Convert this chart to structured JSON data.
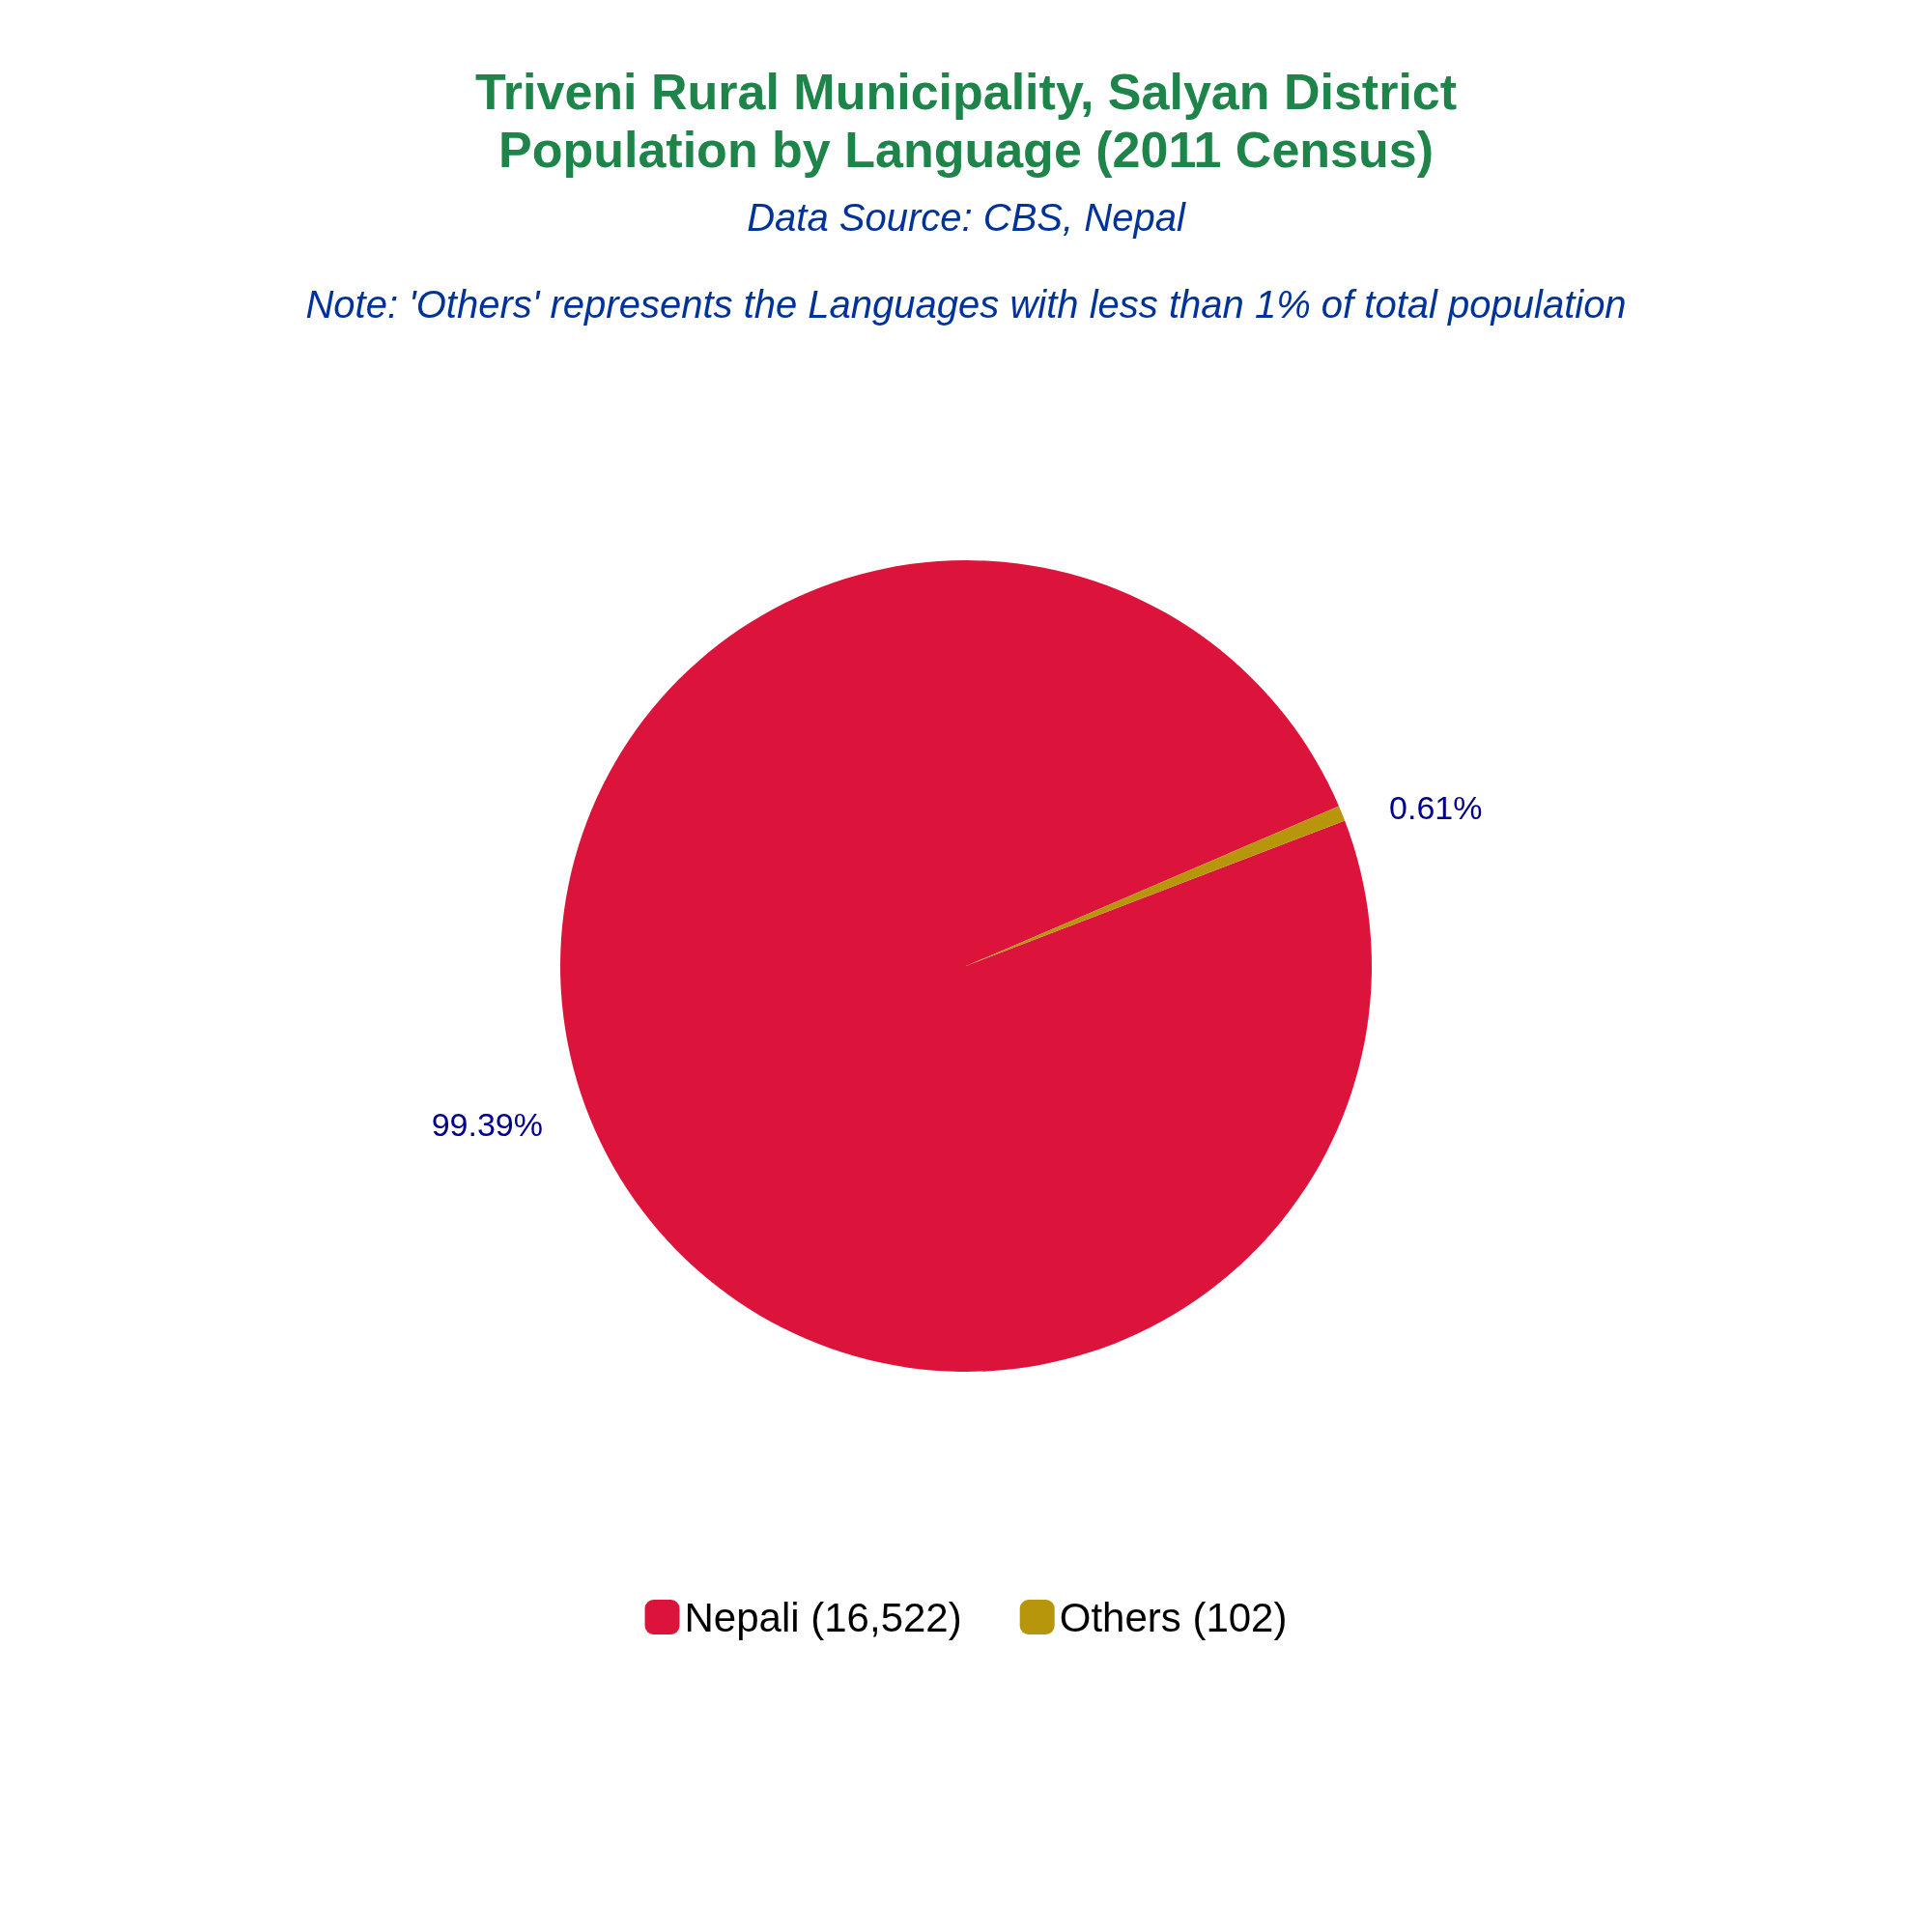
{
  "chart_data": {
    "type": "pie",
    "title": "Triveni Rural Municipality, Salyan District\nPopulation by Language (2011 Census)",
    "subtitle": "Data Source: CBS, Nepal",
    "annotations": [
      "Note: 'Others' represents the Languages with less than 1% of total population"
    ],
    "categories": [
      "Nepali (16,522)",
      "Others (102)"
    ],
    "values": [
      99.39,
      0.61
    ],
    "value_labels": [
      "99.39%",
      "0.61%"
    ],
    "colors": [
      "#dc143c",
      "#b8960c"
    ],
    "legend": "bottom"
  }
}
